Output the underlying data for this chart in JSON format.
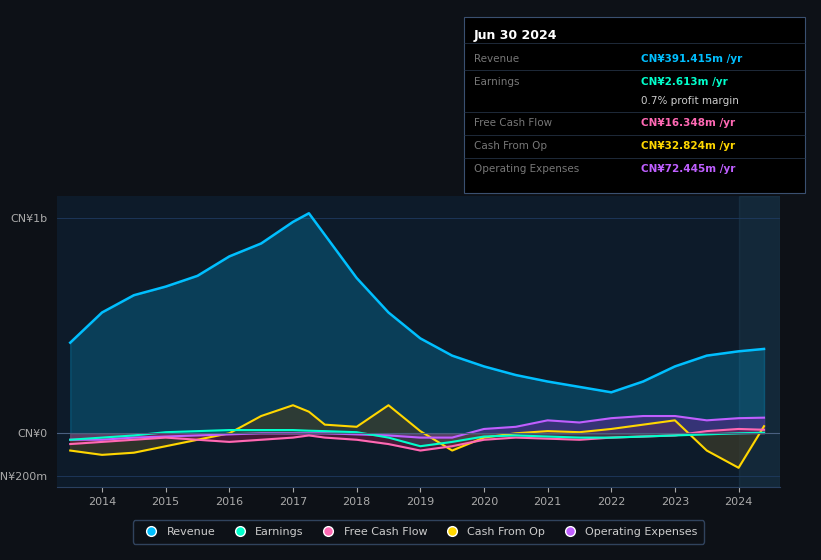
{
  "background_color": "#0d1117",
  "plot_bg_color": "#0d1b2a",
  "title_box_date": "Jun 30 2024",
  "years": [
    2013.5,
    2014.0,
    2014.5,
    2015.0,
    2015.5,
    2016.0,
    2016.5,
    2017.0,
    2017.25,
    2017.5,
    2018.0,
    2018.5,
    2019.0,
    2019.5,
    2020.0,
    2020.5,
    2021.0,
    2021.5,
    2022.0,
    2022.5,
    2023.0,
    2023.5,
    2024.0,
    2024.4
  ],
  "revenue": [
    420,
    560,
    640,
    680,
    730,
    820,
    880,
    980,
    1020,
    920,
    720,
    560,
    440,
    360,
    310,
    270,
    240,
    215,
    190,
    240,
    310,
    360,
    380,
    391
  ],
  "earnings": [
    -30,
    -20,
    -10,
    5,
    10,
    15,
    15,
    15,
    12,
    10,
    5,
    -20,
    -60,
    -40,
    -15,
    -10,
    -15,
    -20,
    -20,
    -15,
    -10,
    -5,
    0,
    2.6
  ],
  "fcf": [
    -50,
    -40,
    -30,
    -20,
    -30,
    -40,
    -30,
    -20,
    -10,
    -20,
    -30,
    -50,
    -80,
    -60,
    -30,
    -20,
    -25,
    -30,
    -20,
    -15,
    -10,
    10,
    20,
    16.3
  ],
  "cashfromop": [
    -80,
    -100,
    -90,
    -60,
    -30,
    0,
    80,
    130,
    100,
    40,
    30,
    130,
    10,
    -80,
    -20,
    0,
    10,
    5,
    20,
    40,
    60,
    -80,
    -160,
    32.8
  ],
  "opex": [
    -30,
    -30,
    -20,
    -15,
    -10,
    -5,
    0,
    0,
    0,
    0,
    -5,
    -10,
    -20,
    -20,
    20,
    30,
    60,
    50,
    70,
    80,
    80,
    60,
    70,
    72.4
  ],
  "ylim": [
    -250,
    1100
  ],
  "yticks_labels": [
    "CN¥1b",
    "CN¥0",
    "-CN¥200m"
  ],
  "yticks_values": [
    1000,
    0,
    -200
  ],
  "xticks": [
    2014,
    2015,
    2016,
    2017,
    2018,
    2019,
    2020,
    2021,
    2022,
    2023,
    2024
  ],
  "xlim": [
    2013.3,
    2024.65
  ],
  "legend": [
    {
      "label": "Revenue",
      "color": "#00bfff"
    },
    {
      "label": "Earnings",
      "color": "#00ffcc"
    },
    {
      "label": "Free Cash Flow",
      "color": "#ff69b4"
    },
    {
      "label": "Cash From Op",
      "color": "#ffd700"
    },
    {
      "label": "Operating Expenses",
      "color": "#bf5fff"
    }
  ],
  "grid_color": "#1e3a5f",
  "zero_line_color": "#4a6080",
  "info_rows": [
    {
      "label": "Revenue",
      "value": "CN¥391.415m /yr",
      "label_color": "#777777",
      "value_color": "#00bfff"
    },
    {
      "label": "Earnings",
      "value": "CN¥2.613m /yr",
      "label_color": "#777777",
      "value_color": "#00ffcc"
    },
    {
      "label": "",
      "value": "0.7% profit margin",
      "label_color": "#777777",
      "value_color": "#cccccc"
    },
    {
      "label": "Free Cash Flow",
      "value": "CN¥16.348m /yr",
      "label_color": "#777777",
      "value_color": "#ff69b4"
    },
    {
      "label": "Cash From Op",
      "value": "CN¥32.824m /yr",
      "label_color": "#777777",
      "value_color": "#ffd700"
    },
    {
      "label": "Operating Expenses",
      "value": "CN¥72.445m /yr",
      "label_color": "#777777",
      "value_color": "#bf5fff"
    }
  ]
}
